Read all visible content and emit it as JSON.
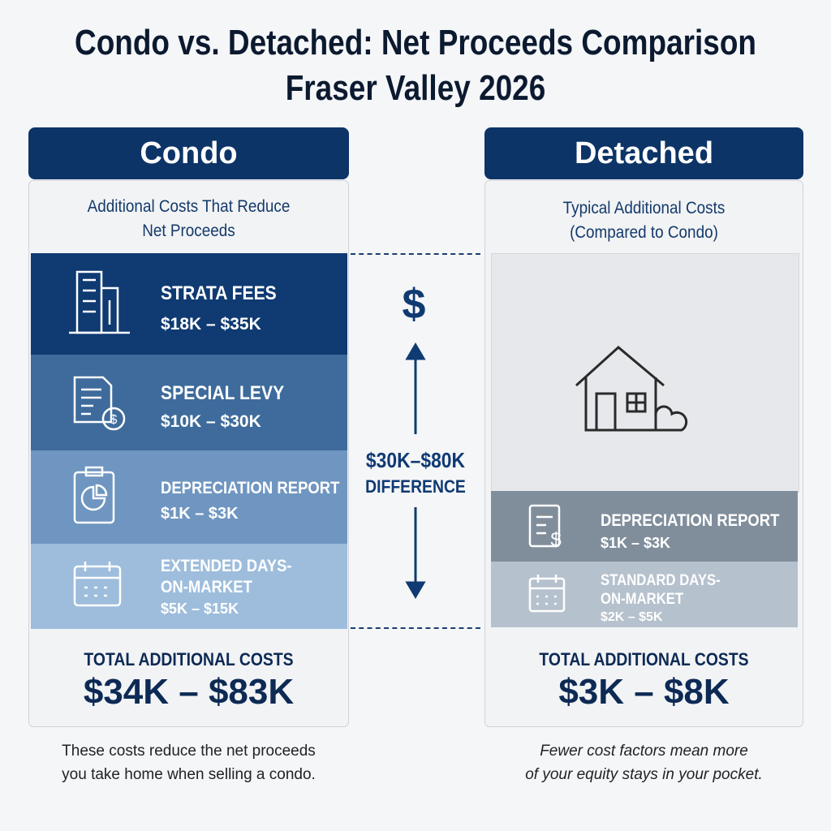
{
  "title_lines": [
    "Condo vs. Detached: Net Proceeds Comparison",
    "Fraser Valley 2026"
  ],
  "condo": {
    "header": "Condo",
    "subtitle_lines": [
      "Additional Costs That Reduce",
      "Net Proceeds"
    ],
    "items": [
      {
        "label_lines": [
          "STRATA FEES"
        ],
        "range": "$18K – $35K"
      },
      {
        "label_lines": [
          "SPECIAL LEVY"
        ],
        "range": "$10K – $30K"
      },
      {
        "label_lines": [
          "DEPRECIATION REPORT"
        ],
        "range": "$1K – $3K"
      },
      {
        "label_lines": [
          "EXTENDED DAYS-",
          "ON-MARKET"
        ],
        "range": "$5K – $15K"
      }
    ],
    "total_label": "TOTAL ADDITIONAL COSTS",
    "total_value": "$34K – $83K",
    "footnote_lines": [
      "These costs reduce the net proceeds",
      "you take home when selling a condo."
    ]
  },
  "middle": {
    "symbol": "$",
    "difference_lines": [
      "$30K–$80K",
      "DIFFERENCE"
    ]
  },
  "detached": {
    "header": "Detached",
    "subtitle_lines": [
      "Typical Additional Costs",
      "(Compared to Condo)"
    ],
    "items": [
      {
        "label_lines": [
          "DEPRECIATION REPORT"
        ],
        "range": "$1K – $3K"
      },
      {
        "label_lines": [
          "STANDARD DAYS-",
          "ON-MARKET"
        ],
        "range": "$2K – $5K"
      }
    ],
    "total_label": "TOTAL ADDITIONAL COSTS",
    "total_value": "$3K – $8K",
    "footnote_lines": [
      "Fewer cost factors mean more",
      "of your equity stays in your pocket."
    ]
  }
}
